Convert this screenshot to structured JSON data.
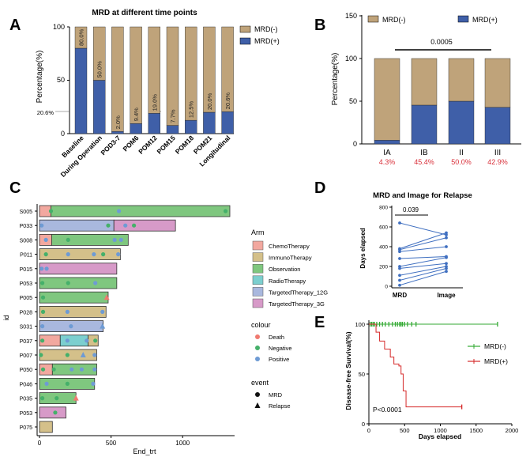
{
  "colors": {
    "neg": "#bfa37a",
    "pos": "#3f5fa8",
    "red_text": "#d9303a",
    "chemo": "#f2a89f",
    "immuno": "#d4c08a",
    "observation": "#7fc77f",
    "radio": "#7ccfcf",
    "t12g": "#a9b8de",
    "t3g": "#d79ac8",
    "death": "#f07a70",
    "negative_dot": "#45b06a",
    "positive_dot": "#6e9bd4",
    "km_neg": "#33aa33",
    "km_pos": "#d62a2a"
  },
  "chart_data": [
    {
      "panel": "A",
      "type": "bar",
      "stacked": true,
      "title": "MRD at different time points",
      "ylabel": "Percentage(%)",
      "ylim": [
        0,
        100
      ],
      "yticks": [
        "0",
        "50",
        "100"
      ],
      "extra_tick": "20.6%",
      "categories": [
        "Baseline",
        "During Operation",
        "POD3-7",
        "POM6",
        "POM12",
        "POM15",
        "POM18",
        "POM21",
        "Longitudinal"
      ],
      "series": [
        {
          "name": "MRD(+)",
          "values": [
            80.0,
            50.0,
            2.0,
            9.4,
            19.0,
            7.7,
            12.5,
            20.0,
            20.6
          ]
        },
        {
          "name": "MRD(-)",
          "values": [
            20.0,
            50.0,
            98.0,
            90.6,
            81.0,
            92.3,
            87.5,
            80.0,
            79.4
          ]
        }
      ],
      "value_labels": [
        "80.0%",
        "50.0%",
        "2.0%",
        "9.4%",
        "19.0%",
        "7.7%",
        "12.5%",
        "20.0%",
        "20.6%"
      ],
      "legend": [
        "MRD(-)",
        "MRD(+)"
      ]
    },
    {
      "panel": "B",
      "type": "bar",
      "stacked": true,
      "ylabel": "Percentage(%)",
      "ylim": [
        0,
        150
      ],
      "yticks": [
        "0",
        "50",
        "100",
        "150"
      ],
      "categories": [
        "IA",
        "IB",
        "II",
        "III"
      ],
      "series": [
        {
          "name": "MRD(+)",
          "values": [
            4.3,
            45.4,
            50.0,
            42.9
          ]
        },
        {
          "name": "MRD(-)",
          "values": [
            95.7,
            54.6,
            50.0,
            57.1
          ]
        }
      ],
      "pct_labels": [
        "4.3%",
        "45.4%",
        "50.0%",
        "42.9%"
      ],
      "pvalue": "0.0005",
      "legend": [
        "MRD(-)",
        "MRD(+)"
      ]
    },
    {
      "panel": "C",
      "type": "swimmer",
      "xlabel": "End_trt",
      "ylabel": "id",
      "xlim": [
        0,
        1350
      ],
      "xticks": [
        "0",
        "500",
        "1000"
      ],
      "patients": [
        {
          "id": "S005",
          "segments": [
            [
              0,
              80,
              "chemo"
            ],
            [
              80,
              1330,
              "observation"
            ]
          ],
          "events": [
            [
              80,
              "negative",
              "circle"
            ],
            [
              555,
              "positive",
              "circle"
            ],
            [
              1300,
              "negative",
              "circle"
            ]
          ]
        },
        {
          "id": "P033",
          "segments": [
            [
              0,
              520,
              "t12g"
            ],
            [
              520,
              950,
              "t3g"
            ]
          ],
          "events": [
            [
              15,
              "positive",
              "circle"
            ],
            [
              480,
              "negative",
              "circle"
            ],
            [
              600,
              "positive",
              "circle"
            ],
            [
              660,
              "negative",
              "circle"
            ]
          ]
        },
        {
          "id": "S008",
          "segments": [
            [
              0,
              85,
              "chemo"
            ],
            [
              85,
              620,
              "observation"
            ]
          ],
          "events": [
            [
              45,
              "positive",
              "circle"
            ],
            [
              200,
              "negative",
              "circle"
            ],
            [
              525,
              "positive",
              "circle"
            ],
            [
              570,
              "positive",
              "circle"
            ]
          ]
        },
        {
          "id": "P011",
          "segments": [
            [
              0,
              565,
              "immuno"
            ]
          ],
          "events": [
            [
              45,
              "negative",
              "circle"
            ],
            [
              200,
              "positive",
              "circle"
            ],
            [
              380,
              "positive",
              "circle"
            ],
            [
              445,
              "negative",
              "circle"
            ],
            [
              550,
              "positive",
              "circle"
            ]
          ]
        },
        {
          "id": "P015",
          "segments": [
            [
              0,
              540,
              "t3g"
            ]
          ],
          "events": [
            [
              15,
              "positive",
              "circle"
            ],
            [
              50,
              "positive",
              "circle"
            ]
          ]
        },
        {
          "id": "P053",
          "segments": [
            [
              0,
              540,
              "observation"
            ]
          ],
          "events": [
            [
              20,
              "negative",
              "circle"
            ],
            [
              200,
              "negative",
              "circle"
            ],
            [
              390,
              "positive",
              "circle"
            ]
          ]
        },
        {
          "id": "P005",
          "segments": [
            [
              0,
              480,
              "observation"
            ]
          ],
          "events": [
            [
              25,
              "negative",
              "circle"
            ],
            [
              470,
              "death",
              "triangle"
            ]
          ]
        },
        {
          "id": "P028",
          "segments": [
            [
              0,
              465,
              "immuno"
            ]
          ],
          "events": [
            [
              25,
              "negative",
              "circle"
            ],
            [
              195,
              "positive",
              "circle"
            ],
            [
              440,
              "positive",
              "circle"
            ]
          ]
        },
        {
          "id": "S031",
          "segments": [
            [
              0,
              445,
              "t12g"
            ]
          ],
          "events": [
            [
              20,
              "positive",
              "circle"
            ],
            [
              220,
              "positive",
              "circle"
            ],
            [
              440,
              "positive",
              "triangle"
            ]
          ]
        },
        {
          "id": "P037",
          "segments": [
            [
              0,
              145,
              "chemo"
            ],
            [
              145,
              340,
              "radio"
            ],
            [
              340,
              410,
              "immuno"
            ]
          ],
          "events": [
            [
              20,
              "negative",
              "circle"
            ],
            [
              195,
              "positive",
              "circle"
            ],
            [
              330,
              "positive",
              "circle"
            ],
            [
              390,
              "negative",
              "circle"
            ]
          ]
        },
        {
          "id": "P007",
          "segments": [
            [
              0,
              400,
              "immuno"
            ]
          ],
          "events": [
            [
              10,
              "negative",
              "circle"
            ],
            [
              195,
              "negative",
              "circle"
            ],
            [
              305,
              "positive",
              "triangle"
            ],
            [
              385,
              "positive",
              "circle"
            ]
          ]
        },
        {
          "id": "P050",
          "segments": [
            [
              0,
              90,
              "chemo"
            ],
            [
              90,
              400,
              "observation"
            ]
          ],
          "events": [
            [
              25,
              "negative",
              "circle"
            ],
            [
              100,
              "negative",
              "circle"
            ],
            [
              225,
              "positive",
              "circle"
            ],
            [
              295,
              "positive",
              "circle"
            ],
            [
              385,
              "positive",
              "circle"
            ]
          ]
        },
        {
          "id": "P046",
          "segments": [
            [
              0,
              385,
              "observation"
            ]
          ],
          "events": [
            [
              50,
              "positive",
              "circle"
            ],
            [
              195,
              "negative",
              "circle"
            ],
            [
              375,
              "positive",
              "circle"
            ]
          ]
        },
        {
          "id": "P035",
          "segments": [
            [
              0,
              255,
              "observation"
            ]
          ],
          "events": [
            [
              20,
              "negative",
              "circle"
            ],
            [
              120,
              "negative",
              "circle"
            ],
            [
              255,
              "death",
              "triangle"
            ]
          ]
        },
        {
          "id": "P053",
          "segments": [
            [
              0,
              185,
              "t3g"
            ]
          ],
          "events": [
            [
              110,
              "negative",
              "circle"
            ]
          ]
        },
        {
          "id": "P075",
          "segments": [
            [
              0,
              90,
              "immuno"
            ]
          ],
          "events": []
        }
      ],
      "legend_arm_title": "Arm",
      "legend_arm": [
        {
          "key": "chemo",
          "label": "ChemoTherapy"
        },
        {
          "key": "immuno",
          "label": "ImmunoTherapy"
        },
        {
          "key": "observation",
          "label": "Observation"
        },
        {
          "key": "radio",
          "label": "RadioTherapy"
        },
        {
          "key": "t12g",
          "label": "TargetedTherapy_12G"
        },
        {
          "key": "t3g",
          "label": "TargetedTherapy_3G"
        }
      ],
      "legend_colour_title": "colour",
      "legend_colour": [
        {
          "key": "death",
          "label": "Death"
        },
        {
          "key": "negative",
          "label": "Negative"
        },
        {
          "key": "positive",
          "label": "Positive"
        }
      ],
      "legend_event_title": "event",
      "legend_event": [
        {
          "shape": "circle",
          "label": "MRD"
        },
        {
          "shape": "triangle",
          "label": "Relapse"
        }
      ]
    },
    {
      "panel": "D",
      "type": "paired-scatter",
      "title": "MRD and Image for Relapse",
      "ylabel": "Days elapsed",
      "ylim": [
        0,
        800
      ],
      "yticks": [
        "0",
        "200",
        "400",
        "600",
        "800"
      ],
      "categories": [
        "MRD",
        "Image"
      ],
      "pairs": [
        [
          640,
          520
        ],
        [
          380,
          540
        ],
        [
          370,
          490
        ],
        [
          350,
          400
        ],
        [
          280,
          300
        ],
        [
          200,
          290
        ],
        [
          180,
          230
        ],
        [
          110,
          200
        ],
        [
          60,
          180
        ],
        [
          10,
          150
        ]
      ],
      "pvalue": "0.039"
    },
    {
      "panel": "E",
      "type": "line",
      "subtype": "kaplan-meier",
      "xlabel": "Days elapsed",
      "ylabel": "Disease-free Survival(%)",
      "xlim": [
        0,
        2000
      ],
      "ylim": [
        0,
        100
      ],
      "xticks": [
        "0",
        "500",
        "1000",
        "1500",
        "2000"
      ],
      "yticks": [
        "0",
        "50",
        "100"
      ],
      "series": [
        {
          "name": "MRD(-)",
          "x": [
            0,
            1800
          ],
          "y": [
            100,
            100
          ],
          "censor_x": [
            20,
            40,
            60,
            80,
            110,
            150,
            190,
            230,
            280,
            330,
            370,
            400,
            430,
            450,
            470,
            500,
            540,
            600,
            660,
            1800
          ]
        },
        {
          "name": "MRD(+)",
          "x": [
            0,
            100,
            150,
            220,
            300,
            350,
            420,
            450,
            480,
            520,
            1300
          ],
          "y": [
            100,
            92,
            83,
            75,
            67,
            60,
            58,
            50,
            33,
            17,
            17
          ],
          "censor_x": [
            1300
          ]
        }
      ],
      "pvalue": "P<0.0001",
      "legend": [
        "MRD(-)",
        "MRD(+)"
      ]
    }
  ]
}
